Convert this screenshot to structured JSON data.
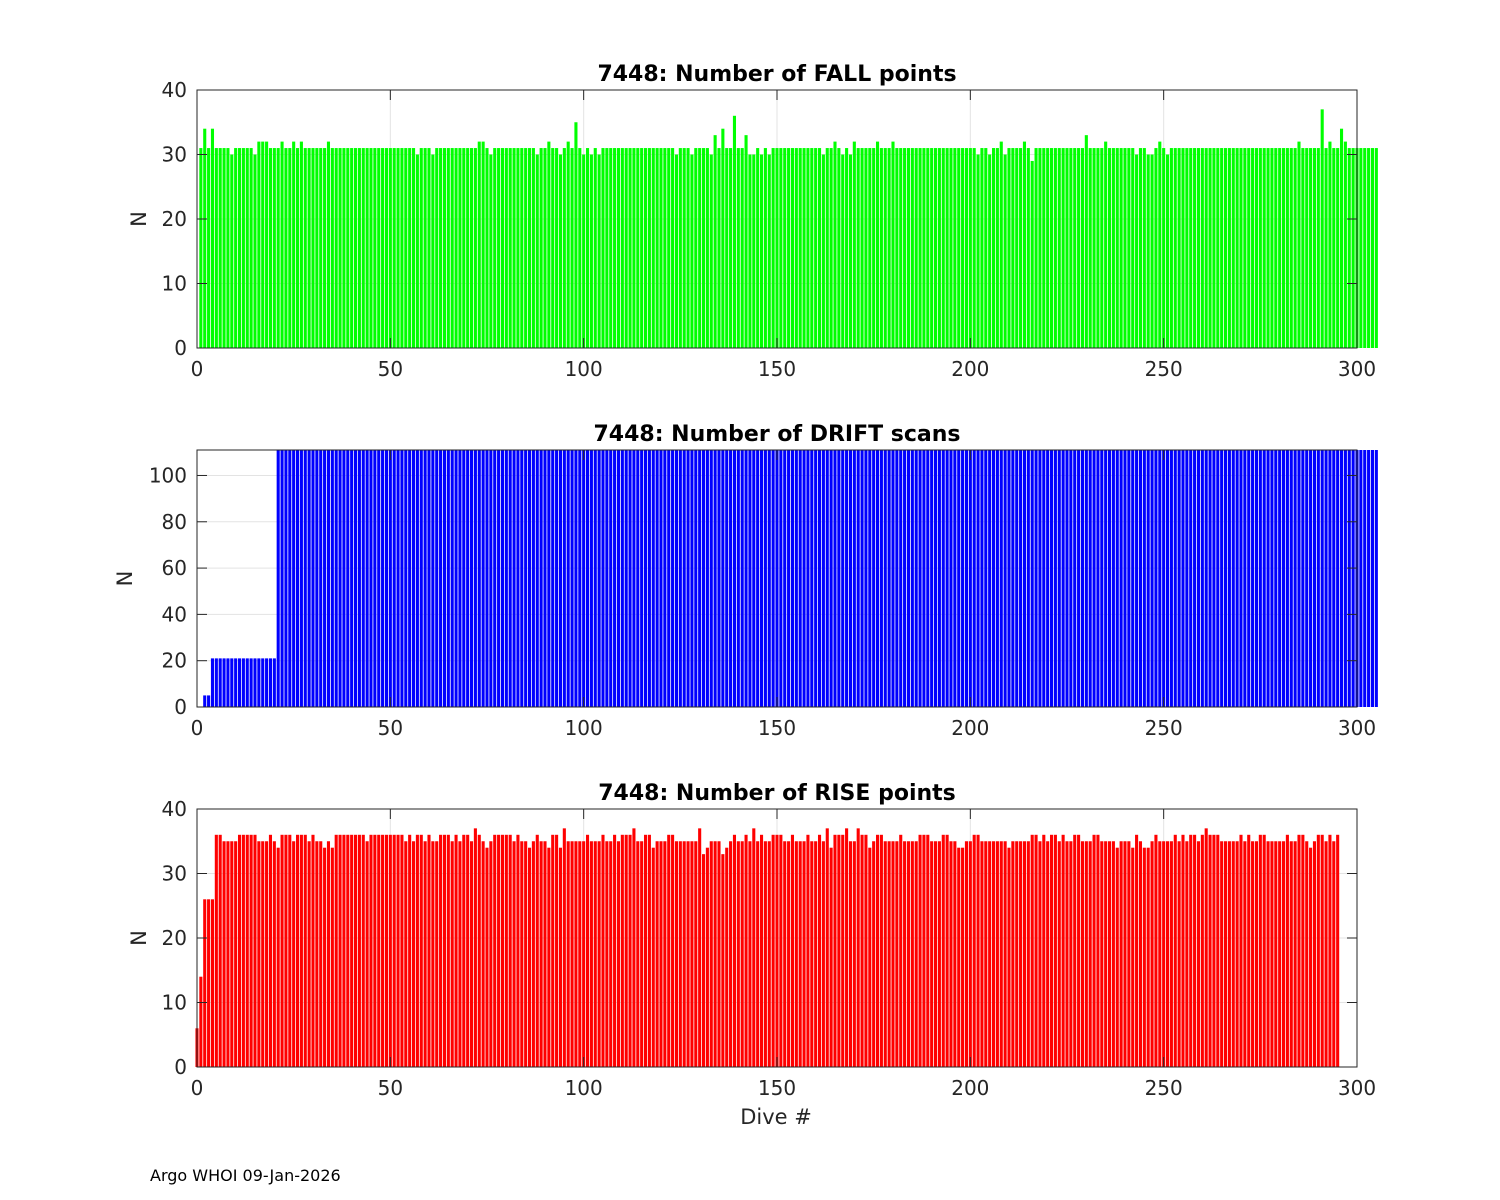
{
  "footer": "Argo WHOI 09-Jan-2026",
  "chart_data": [
    {
      "type": "bar",
      "title": "7448: Number of FALL points",
      "xlabel": "",
      "ylabel": "N",
      "xlim": [
        0,
        300
      ],
      "ylim": [
        0,
        40
      ],
      "xticks": [
        "0",
        "50",
        "100",
        "150",
        "200",
        "250",
        "300"
      ],
      "yticks": [
        "0",
        "10",
        "20",
        "30",
        "40"
      ],
      "grid": true,
      "color": "#00ff00",
      "x_start": 1,
      "values": [
        31,
        34,
        31,
        34,
        31,
        31,
        31,
        31,
        30,
        31,
        31,
        31,
        31,
        31,
        30,
        32,
        32,
        32,
        31,
        31,
        31,
        32,
        31,
        31,
        32,
        31,
        32,
        31,
        31,
        31,
        31,
        31,
        31,
        32,
        31,
        31,
        31,
        31,
        31,
        31,
        31,
        31,
        31,
        31,
        31,
        31,
        31,
        31,
        31,
        31,
        31,
        31,
        31,
        31,
        31,
        31,
        30,
        31,
        31,
        31,
        30,
        31,
        31,
        31,
        31,
        31,
        31,
        31,
        31,
        31,
        31,
        31,
        32,
        32,
        31,
        30,
        31,
        31,
        31,
        31,
        31,
        31,
        31,
        31,
        31,
        31,
        31,
        30,
        31,
        31,
        32,
        31,
        31,
        30,
        31,
        32,
        31,
        35,
        31,
        30,
        31,
        30,
        31,
        30,
        31,
        31,
        31,
        31,
        31,
        31,
        31,
        31,
        31,
        31,
        31,
        31,
        31,
        31,
        31,
        31,
        31,
        31,
        31,
        30,
        31,
        31,
        31,
        30,
        31,
        31,
        31,
        31,
        30,
        33,
        31,
        34,
        31,
        31,
        36,
        31,
        31,
        33,
        30,
        30,
        31,
        30,
        31,
        30,
        31,
        31,
        31,
        31,
        31,
        31,
        31,
        31,
        31,
        31,
        31,
        31,
        31,
        30,
        31,
        31,
        32,
        31,
        30,
        31,
        30,
        32,
        31,
        31,
        31,
        31,
        31,
        32,
        31,
        31,
        31,
        32,
        31,
        31,
        31,
        31,
        31,
        31,
        31,
        31,
        31,
        31,
        31,
        31,
        31,
        31,
        31,
        31,
        31,
        31,
        31,
        31,
        31,
        30,
        31,
        31,
        30,
        31,
        31,
        32,
        30,
        31,
        31,
        31,
        31,
        32,
        31,
        29,
        31,
        31,
        31,
        31,
        31,
        31,
        31,
        31,
        31,
        31,
        31,
        31,
        31,
        33,
        31,
        31,
        31,
        31,
        32,
        31,
        31,
        31,
        31,
        31,
        31,
        31,
        30,
        31,
        31,
        30,
        30,
        31,
        32,
        31,
        30,
        31,
        31,
        31,
        31,
        31,
        31,
        31,
        31,
        31,
        31,
        31,
        31,
        31,
        31,
        31,
        31,
        31,
        31,
        31,
        31,
        31,
        31,
        31,
        31,
        31,
        31,
        31,
        31,
        31,
        31,
        31,
        31,
        31,
        32,
        31,
        31,
        31,
        31,
        31,
        37,
        31,
        32,
        31,
        31,
        34,
        32,
        31,
        31,
        31,
        31,
        31,
        31,
        31,
        31
      ]
    },
    {
      "type": "bar",
      "title": "7448: Number of DRIFT scans",
      "xlabel": "",
      "ylabel": "N",
      "xlim": [
        0,
        300
      ],
      "ylim": [
        0,
        111
      ],
      "xticks": [
        "0",
        "50",
        "100",
        "150",
        "200",
        "250",
        "300"
      ],
      "yticks": [
        "0",
        "20",
        "40",
        "60",
        "80",
        "100"
      ],
      "grid": true,
      "color": "#0000ff",
      "x_start": 1,
      "values": [
        0,
        5,
        5,
        21,
        21,
        21,
        21,
        21,
        21,
        21,
        21,
        21,
        21,
        21,
        21,
        21,
        21,
        21,
        21,
        21,
        111,
        111,
        111,
        111,
        111,
        111,
        111,
        111,
        111,
        111,
        111,
        111,
        111,
        111,
        111,
        111,
        111,
        111,
        111,
        111,
        111,
        111,
        111,
        111,
        111,
        111,
        111,
        111,
        111,
        111,
        111,
        111,
        111,
        111,
        111,
        111,
        111,
        111,
        111,
        111,
        111,
        111,
        111,
        111,
        111,
        111,
        111,
        111,
        111,
        111,
        111,
        111,
        111,
        111,
        111,
        111,
        111,
        111,
        111,
        111,
        111,
        111,
        111,
        111,
        111,
        111,
        111,
        111,
        111,
        111,
        111,
        111,
        111,
        111,
        111,
        111,
        111,
        111,
        111,
        111,
        111,
        111,
        111,
        111,
        111,
        111,
        111,
        111,
        111,
        111,
        111,
        111,
        111,
        111,
        111,
        111,
        111,
        111,
        111,
        111,
        111,
        111,
        111,
        111,
        111,
        111,
        111,
        111,
        111,
        111,
        111,
        111,
        111,
        111,
        111,
        111,
        111,
        111,
        111,
        111,
        111,
        111,
        111,
        111,
        111,
        111,
        111,
        111,
        111,
        111,
        111,
        111,
        111,
        111,
        111,
        111,
        111,
        111,
        111,
        111,
        111,
        111,
        111,
        111,
        111,
        111,
        111,
        111,
        111,
        111,
        111,
        111,
        111,
        111,
        111,
        111,
        111,
        111,
        111,
        111,
        111,
        111,
        111,
        111,
        111,
        111,
        111,
        111,
        111,
        111,
        111,
        111,
        111,
        111,
        111,
        111,
        111,
        111,
        111,
        111,
        111,
        111,
        111,
        111,
        111,
        111,
        111,
        111,
        111,
        111,
        111,
        111,
        111,
        111,
        111,
        111,
        111,
        111,
        111,
        111,
        111,
        111,
        111,
        111,
        111,
        111,
        111,
        111,
        111,
        111,
        111,
        111,
        111,
        111,
        111,
        111,
        111,
        111,
        111,
        111,
        111,
        111,
        111,
        111,
        111,
        111,
        111,
        111,
        111,
        111,
        111,
        111,
        111,
        111,
        111,
        111,
        111,
        111,
        111,
        111,
        111,
        111,
        111,
        111,
        111,
        111,
        111,
        111,
        111,
        111,
        111,
        111,
        111,
        111,
        111,
        111,
        111,
        111,
        111,
        111,
        111,
        111,
        111,
        111,
        111,
        111,
        111,
        111,
        111,
        111,
        111,
        111,
        111,
        111,
        111,
        111,
        111,
        111,
        111,
        111,
        111,
        111,
        111,
        111,
        111
      ]
    },
    {
      "type": "bar",
      "title": "7448: Number of RISE points",
      "xlabel": "Dive #",
      "ylabel": "N",
      "xlim": [
        0,
        300
      ],
      "ylim": [
        0,
        40
      ],
      "xticks": [
        "0",
        "50",
        "100",
        "150",
        "200",
        "250",
        "300"
      ],
      "yticks": [
        "0",
        "10",
        "20",
        "30",
        "40"
      ],
      "grid": true,
      "color": "#ff0000",
      "x_start": 0,
      "values": [
        6,
        14,
        26,
        26,
        26,
        36,
        36,
        35,
        35,
        35,
        35,
        36,
        36,
        36,
        36,
        36,
        35,
        35,
        35,
        36,
        35,
        34,
        36,
        36,
        36,
        35,
        36,
        36,
        36,
        35,
        36,
        35,
        35,
        34,
        35,
        34,
        36,
        36,
        36,
        36,
        36,
        36,
        36,
        36,
        35,
        36,
        36,
        36,
        36,
        36,
        36,
        36,
        36,
        36,
        35,
        36,
        35,
        36,
        36,
        35,
        36,
        35,
        35,
        36,
        36,
        36,
        35,
        36,
        35,
        36,
        36,
        35,
        37,
        36,
        35,
        34,
        35,
        36,
        36,
        36,
        36,
        36,
        35,
        36,
        35,
        35,
        34,
        35,
        36,
        35,
        35,
        34,
        36,
        36,
        34,
        37,
        35,
        35,
        35,
        35,
        35,
        36,
        35,
        35,
        35,
        36,
        35,
        35,
        36,
        35,
        36,
        36,
        36,
        37,
        35,
        35,
        36,
        36,
        34,
        35,
        35,
        35,
        36,
        36,
        35,
        35,
        35,
        35,
        35,
        35,
        37,
        33,
        34,
        35,
        35,
        35,
        33,
        34,
        35,
        36,
        35,
        35,
        36,
        35,
        37,
        35,
        36,
        35,
        35,
        36,
        36,
        36,
        35,
        35,
        36,
        35,
        35,
        35,
        36,
        35,
        35,
        36,
        35,
        37,
        34,
        36,
        36,
        36,
        37,
        35,
        35,
        37,
        36,
        36,
        34,
        35,
        36,
        36,
        35,
        35,
        35,
        35,
        36,
        35,
        35,
        35,
        35,
        36,
        36,
        36,
        35,
        35,
        35,
        36,
        36,
        35,
        35,
        34,
        34,
        35,
        35,
        36,
        36,
        35,
        35,
        35,
        35,
        35,
        35,
        35,
        34,
        35,
        35,
        35,
        35,
        35,
        36,
        36,
        35,
        36,
        35,
        36,
        36,
        35,
        36,
        35,
        35,
        36,
        36,
        35,
        35,
        35,
        36,
        36,
        35,
        35,
        35,
        35,
        34,
        35,
        35,
        35,
        34,
        36,
        35,
        34,
        34,
        35,
        36,
        35,
        35,
        35,
        35,
        36,
        35,
        36,
        35,
        36,
        36,
        35,
        36,
        37,
        36,
        36,
        36,
        35,
        35,
        35,
        35,
        35,
        36,
        35,
        36,
        35,
        35,
        36,
        36,
        35,
        35,
        35,
        35,
        35,
        36,
        35,
        35,
        36,
        36,
        35,
        34,
        35,
        36,
        36,
        35,
        36,
        35,
        36
      ]
    }
  ]
}
